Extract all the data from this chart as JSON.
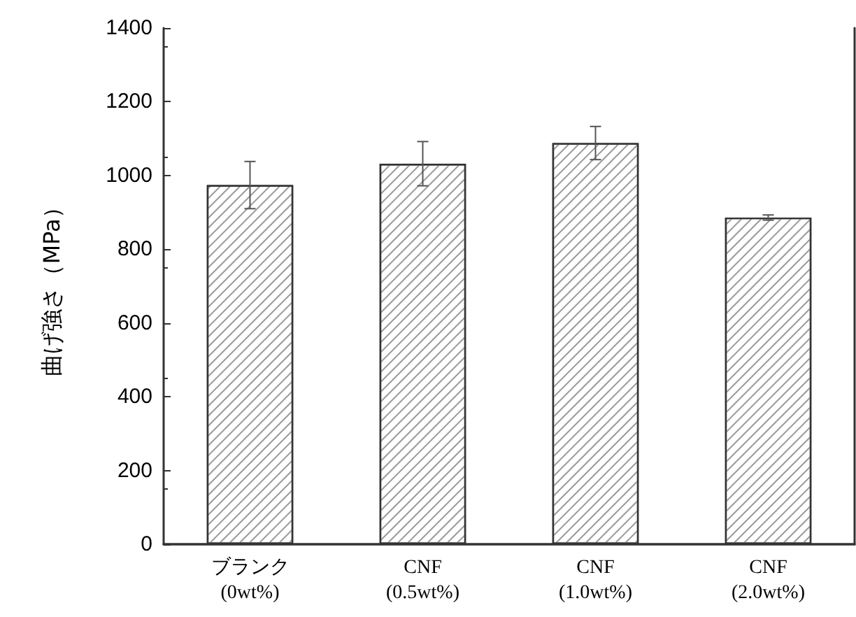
{
  "chart_data": {
    "type": "bar",
    "ylabel": "曲げ強さ（MPa）",
    "categories": [
      "ブランク\n(0wt%)",
      "CNF\n(0.5wt%)",
      "CNF\n(1.0wt%)",
      "CNF\n(2.0wt%)"
    ],
    "series": [
      {
        "color": "#ffffff",
        "values": [
          974,
          1032,
          1088,
          886
        ],
        "errors": [
          64,
          60,
          45,
          7
        ]
      }
    ],
    "ylim": [
      0,
      1400
    ],
    "yticks": [
      0,
      200,
      400,
      600,
      800,
      1000,
      1200,
      1400
    ]
  }
}
